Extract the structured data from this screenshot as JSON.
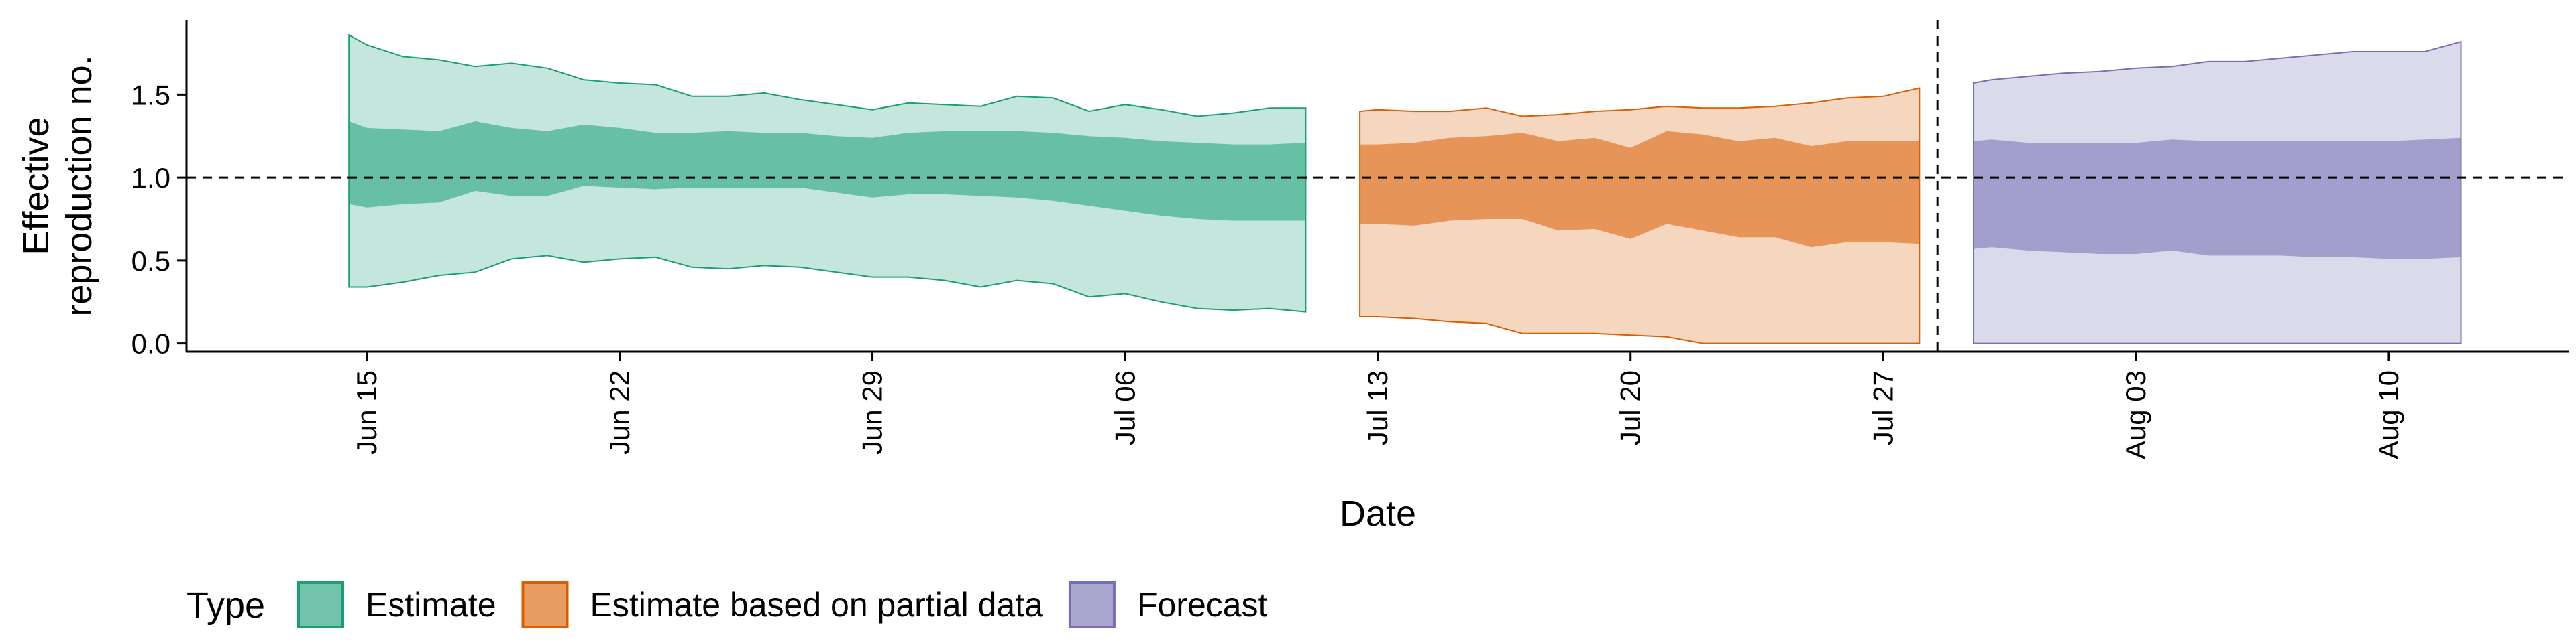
{
  "chart_data": {
    "type": "area",
    "xlabel": "Date",
    "ylabel_lines": [
      "Effective",
      "reproduction no."
    ],
    "xlim": [
      "2020-06-10",
      "2020-08-15"
    ],
    "ylim": [
      -0.05,
      1.95
    ],
    "yticks": [
      0.0,
      0.5,
      1.0,
      1.5
    ],
    "ytick_labels": [
      "0.0",
      "0.5",
      "1.0",
      "1.5"
    ],
    "xticks": [
      "2020-06-15",
      "2020-06-22",
      "2020-06-29",
      "2020-07-06",
      "2020-07-13",
      "2020-07-20",
      "2020-07-27",
      "2020-08-03",
      "2020-08-10"
    ],
    "xtick_labels": [
      "Jun 15",
      "Jun 22",
      "Jun 29",
      "Jul 06",
      "Jul 13",
      "Jul 20",
      "Jul 27",
      "Aug 03",
      "Aug 10"
    ],
    "reference_line_y": 1.0,
    "vertical_line_x": "2020-07-28",
    "legend": {
      "title": "Type",
      "position": "bottom-left"
    },
    "colors": {
      "Estimate": "#1b9e77",
      "Estimate based on partial data": "#d95f02",
      "Forecast": "#7570b3"
    },
    "series": [
      {
        "name": "Estimate",
        "dates": [
          "2020-06-14",
          "2020-06-15",
          "2020-06-16",
          "2020-06-17",
          "2020-06-18",
          "2020-06-19",
          "2020-06-20",
          "2020-06-21",
          "2020-06-22",
          "2020-06-23",
          "2020-06-24",
          "2020-06-25",
          "2020-06-26",
          "2020-06-27",
          "2020-06-28",
          "2020-06-29",
          "2020-06-30",
          "2020-07-01",
          "2020-07-02",
          "2020-07-03",
          "2020-07-04",
          "2020-07-05",
          "2020-07-06",
          "2020-07-07",
          "2020-07-08",
          "2020-07-09",
          "2020-07-10",
          "2020-07-11"
        ],
        "lower_90": [
          0.34,
          0.34,
          0.37,
          0.41,
          0.43,
          0.51,
          0.53,
          0.49,
          0.51,
          0.52,
          0.46,
          0.45,
          0.47,
          0.46,
          0.43,
          0.4,
          0.4,
          0.38,
          0.34,
          0.38,
          0.36,
          0.28,
          0.3,
          0.25,
          0.21,
          0.2,
          0.21,
          0.19
        ],
        "upper_90": [
          1.86,
          1.8,
          1.73,
          1.71,
          1.67,
          1.69,
          1.66,
          1.59,
          1.57,
          1.56,
          1.49,
          1.49,
          1.51,
          1.47,
          1.44,
          1.41,
          1.45,
          1.44,
          1.43,
          1.49,
          1.48,
          1.4,
          1.44,
          1.41,
          1.37,
          1.39,
          1.42,
          1.42
        ],
        "lower_50": [
          0.84,
          0.82,
          0.84,
          0.85,
          0.92,
          0.89,
          0.89,
          0.95,
          0.94,
          0.93,
          0.94,
          0.94,
          0.94,
          0.94,
          0.91,
          0.88,
          0.9,
          0.9,
          0.89,
          0.88,
          0.86,
          0.83,
          0.8,
          0.77,
          0.75,
          0.74,
          0.74,
          0.74
        ],
        "upper_50": [
          1.34,
          1.3,
          1.29,
          1.28,
          1.34,
          1.3,
          1.28,
          1.32,
          1.3,
          1.27,
          1.27,
          1.28,
          1.27,
          1.27,
          1.25,
          1.24,
          1.27,
          1.28,
          1.28,
          1.28,
          1.27,
          1.25,
          1.24,
          1.22,
          1.21,
          1.2,
          1.2,
          1.21
        ]
      },
      {
        "name": "Estimate based on partial data",
        "dates": [
          "2020-07-12",
          "2020-07-13",
          "2020-07-14",
          "2020-07-15",
          "2020-07-16",
          "2020-07-17",
          "2020-07-18",
          "2020-07-19",
          "2020-07-20",
          "2020-07-21",
          "2020-07-22",
          "2020-07-23",
          "2020-07-24",
          "2020-07-25",
          "2020-07-26",
          "2020-07-27",
          "2020-07-28"
        ],
        "lower_90": [
          0.16,
          0.16,
          0.15,
          0.13,
          0.12,
          0.06,
          0.06,
          0.06,
          0.05,
          0.04,
          0.0,
          0.0,
          0.0,
          0.0,
          0.0,
          0.0,
          0.0
        ],
        "upper_90": [
          1.4,
          1.41,
          1.4,
          1.4,
          1.42,
          1.37,
          1.38,
          1.4,
          1.41,
          1.43,
          1.42,
          1.42,
          1.43,
          1.45,
          1.48,
          1.49,
          1.54
        ],
        "lower_50": [
          0.72,
          0.72,
          0.71,
          0.74,
          0.75,
          0.75,
          0.68,
          0.69,
          0.63,
          0.72,
          0.68,
          0.64,
          0.64,
          0.58,
          0.61,
          0.61,
          0.6
        ],
        "upper_50": [
          1.2,
          1.2,
          1.21,
          1.24,
          1.25,
          1.27,
          1.22,
          1.24,
          1.18,
          1.28,
          1.26,
          1.22,
          1.24,
          1.19,
          1.22,
          1.22,
          1.22
        ]
      },
      {
        "name": "Forecast",
        "dates": [
          "2020-07-29",
          "2020-07-30",
          "2020-07-31",
          "2020-08-01",
          "2020-08-02",
          "2020-08-03",
          "2020-08-04",
          "2020-08-05",
          "2020-08-06",
          "2020-08-07",
          "2020-08-08",
          "2020-08-09",
          "2020-08-10",
          "2020-08-11",
          "2020-08-12"
        ],
        "lower_90": [
          0,
          0,
          0,
          0,
          0,
          0,
          0,
          0,
          0,
          0,
          0,
          0,
          0,
          0,
          0
        ],
        "upper_90": [
          1.57,
          1.59,
          1.61,
          1.63,
          1.64,
          1.66,
          1.67,
          1.7,
          1.7,
          1.72,
          1.74,
          1.76,
          1.76,
          1.76,
          1.82
        ],
        "lower_50": [
          0.57,
          0.58,
          0.56,
          0.55,
          0.54,
          0.54,
          0.56,
          0.53,
          0.53,
          0.53,
          0.52,
          0.52,
          0.51,
          0.51,
          0.52
        ],
        "upper_50": [
          1.22,
          1.23,
          1.21,
          1.21,
          1.21,
          1.21,
          1.23,
          1.22,
          1.22,
          1.22,
          1.22,
          1.22,
          1.22,
          1.23,
          1.24
        ]
      }
    ]
  }
}
